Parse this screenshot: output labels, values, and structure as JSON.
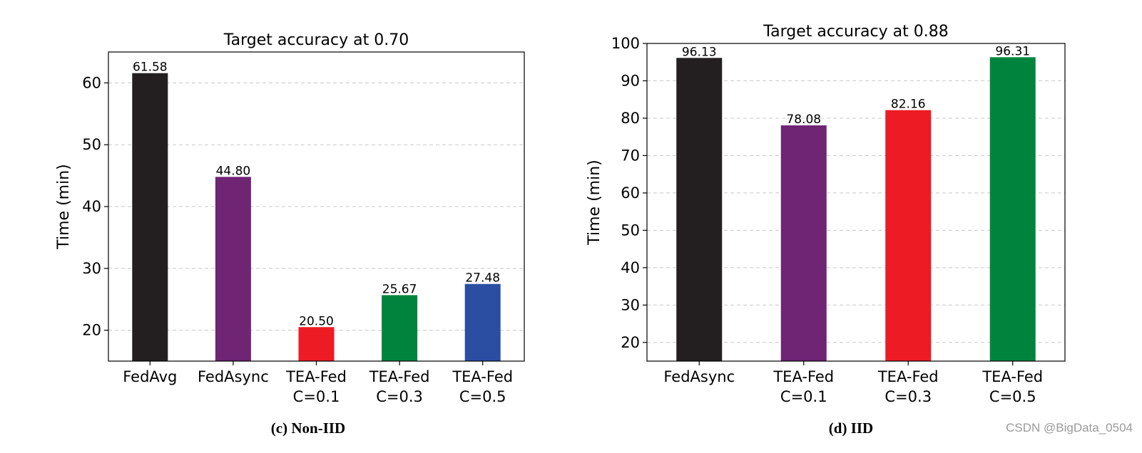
{
  "chart_data": [
    {
      "type": "bar",
      "title": "Target accuracy at 0.70",
      "ylabel": "Time (min)",
      "xlabel": "",
      "caption": "(c) Non-IID",
      "categories": [
        [
          "FedAvg"
        ],
        [
          "FedAsync"
        ],
        [
          "TEA-Fed",
          "C=0.1"
        ],
        [
          "TEA-Fed",
          "C=0.3"
        ],
        [
          "TEA-Fed",
          "C=0.5"
        ]
      ],
      "values": [
        61.58,
        44.8,
        20.5,
        25.67,
        27.48
      ],
      "value_labels": [
        "61.58",
        "44.80",
        "20.50",
        "25.67",
        "27.48"
      ],
      "colors": [
        "#231f20",
        "#6f2474",
        "#ed1c24",
        "#00843d",
        "#2b4ea2"
      ],
      "ylim": [
        15,
        65
      ],
      "yticks": [
        20,
        30,
        40,
        50,
        60
      ],
      "grid": true
    },
    {
      "type": "bar",
      "title": "Target accuracy at 0.88",
      "ylabel": "Time (min)",
      "xlabel": "",
      "caption": "(d) IID",
      "categories": [
        [
          "FedAsync"
        ],
        [
          "TEA-Fed",
          "C=0.1"
        ],
        [
          "TEA-Fed",
          "C=0.3"
        ],
        [
          "TEA-Fed",
          "C=0.5"
        ]
      ],
      "values": [
        96.13,
        78.08,
        82.16,
        96.31
      ],
      "value_labels": [
        "96.13",
        "78.08",
        "82.16",
        "96.31"
      ],
      "colors": [
        "#231f20",
        "#6f2474",
        "#ed1c24",
        "#00843d"
      ],
      "ylim": [
        15,
        100
      ],
      "yticks": [
        20,
        30,
        40,
        50,
        60,
        70,
        80,
        90,
        100
      ],
      "grid": true
    }
  ],
  "watermark": "CSDN @BigData_0504"
}
